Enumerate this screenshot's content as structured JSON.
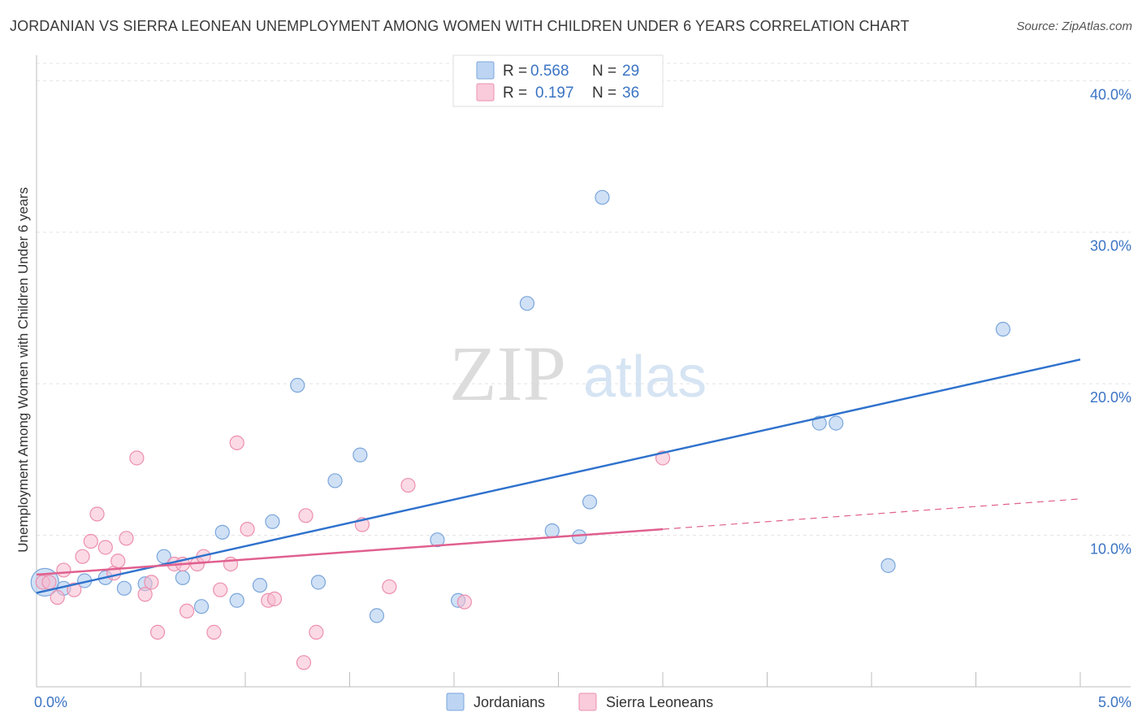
{
  "title": "JORDANIAN VS SIERRA LEONEAN UNEMPLOYMENT AMONG WOMEN WITH CHILDREN UNDER 6 YEARS CORRELATION CHART",
  "source": "Source: ZipAtlas.com",
  "watermark": {
    "zip": "ZIP",
    "atlas": "atlas"
  },
  "legend": {
    "r_label": "R =",
    "n_label": "N =",
    "series": [
      {
        "r": "0.568",
        "n": "29"
      },
      {
        "r": "0.197",
        "n": "36"
      }
    ]
  },
  "chart_data": {
    "type": "scatter",
    "title": "JORDANIAN VS SIERRA LEONEAN UNEMPLOYMENT AMONG WOMEN WITH CHILDREN UNDER 6 YEARS CORRELATION CHART",
    "xlabel": "",
    "ylabel": "Unemployment Among Women with Children Under 6 years",
    "xlim": [
      0,
      5
    ],
    "ylim": [
      0,
      42
    ],
    "x_tick_labels": [
      "0.0%",
      "5.0%"
    ],
    "y_ticks": [
      10,
      20,
      30,
      40
    ],
    "y_tick_labels": [
      "10.0%",
      "20.0%",
      "30.0%",
      "40.0%"
    ],
    "grid": true,
    "legend_position": "top-center",
    "series": [
      {
        "name": "Jordanians",
        "color": "#a9c8ef",
        "stroke": "#7aa5db",
        "line_color": "#2f72cc",
        "trend": {
          "x": [
            0.0,
            5.0
          ],
          "y": [
            6.2,
            21.6
          ],
          "dashed_from": null
        },
        "points": [
          {
            "x": 0.04,
            "y": 6.9,
            "big": true
          },
          {
            "x": 0.13,
            "y": 6.5
          },
          {
            "x": 0.23,
            "y": 7.0
          },
          {
            "x": 0.33,
            "y": 7.2
          },
          {
            "x": 0.42,
            "y": 6.5
          },
          {
            "x": 0.52,
            "y": 6.8
          },
          {
            "x": 0.61,
            "y": 8.6
          },
          {
            "x": 0.7,
            "y": 7.2
          },
          {
            "x": 0.79,
            "y": 5.3
          },
          {
            "x": 0.89,
            "y": 10.2
          },
          {
            "x": 0.96,
            "y": 5.7
          },
          {
            "x": 1.07,
            "y": 6.7
          },
          {
            "x": 1.13,
            "y": 10.9
          },
          {
            "x": 1.25,
            "y": 19.9
          },
          {
            "x": 1.35,
            "y": 6.9
          },
          {
            "x": 1.43,
            "y": 13.6
          },
          {
            "x": 1.55,
            "y": 15.3
          },
          {
            "x": 1.63,
            "y": 4.7
          },
          {
            "x": 1.92,
            "y": 9.7
          },
          {
            "x": 2.02,
            "y": 5.7
          },
          {
            "x": 2.35,
            "y": 25.3
          },
          {
            "x": 2.47,
            "y": 10.3
          },
          {
            "x": 2.6,
            "y": 9.9
          },
          {
            "x": 2.65,
            "y": 12.2
          },
          {
            "x": 2.71,
            "y": 32.3
          },
          {
            "x": 3.75,
            "y": 17.4
          },
          {
            "x": 3.83,
            "y": 17.4
          },
          {
            "x": 4.08,
            "y": 8.0
          },
          {
            "x": 4.63,
            "y": 23.6
          }
        ]
      },
      {
        "name": "Sierra Leoneans",
        "color": "#f7bcd0",
        "stroke": "#ec8fae",
        "line_color": "#e0608f",
        "trend": {
          "x": [
            0.0,
            5.0
          ],
          "y": [
            7.4,
            12.4
          ],
          "dashed_from": 3.0
        },
        "points": [
          {
            "x": 0.03,
            "y": 6.9
          },
          {
            "x": 0.06,
            "y": 6.9
          },
          {
            "x": 0.1,
            "y": 5.9
          },
          {
            "x": 0.13,
            "y": 7.7
          },
          {
            "x": 0.18,
            "y": 6.4
          },
          {
            "x": 0.22,
            "y": 8.6
          },
          {
            "x": 0.26,
            "y": 9.6
          },
          {
            "x": 0.29,
            "y": 11.4
          },
          {
            "x": 0.33,
            "y": 9.2
          },
          {
            "x": 0.37,
            "y": 7.5
          },
          {
            "x": 0.39,
            "y": 8.3
          },
          {
            "x": 0.43,
            "y": 9.8
          },
          {
            "x": 0.48,
            "y": 15.1
          },
          {
            "x": 0.52,
            "y": 6.1
          },
          {
            "x": 0.55,
            "y": 6.9
          },
          {
            "x": 0.58,
            "y": 3.6
          },
          {
            "x": 0.66,
            "y": 8.1
          },
          {
            "x": 0.7,
            "y": 8.1
          },
          {
            "x": 0.72,
            "y": 5.0
          },
          {
            "x": 0.77,
            "y": 8.1
          },
          {
            "x": 0.8,
            "y": 8.6
          },
          {
            "x": 0.85,
            "y": 3.6
          },
          {
            "x": 0.88,
            "y": 6.4
          },
          {
            "x": 0.93,
            "y": 8.1
          },
          {
            "x": 0.96,
            "y": 16.1
          },
          {
            "x": 1.01,
            "y": 10.4
          },
          {
            "x": 1.11,
            "y": 5.7
          },
          {
            "x": 1.14,
            "y": 5.8
          },
          {
            "x": 1.28,
            "y": 1.6
          },
          {
            "x": 1.29,
            "y": 11.3
          },
          {
            "x": 1.34,
            "y": 3.6
          },
          {
            "x": 1.56,
            "y": 10.7
          },
          {
            "x": 1.69,
            "y": 6.6
          },
          {
            "x": 1.78,
            "y": 13.3
          },
          {
            "x": 2.05,
            "y": 5.6
          },
          {
            "x": 3.0,
            "y": 15.1
          }
        ]
      }
    ]
  }
}
